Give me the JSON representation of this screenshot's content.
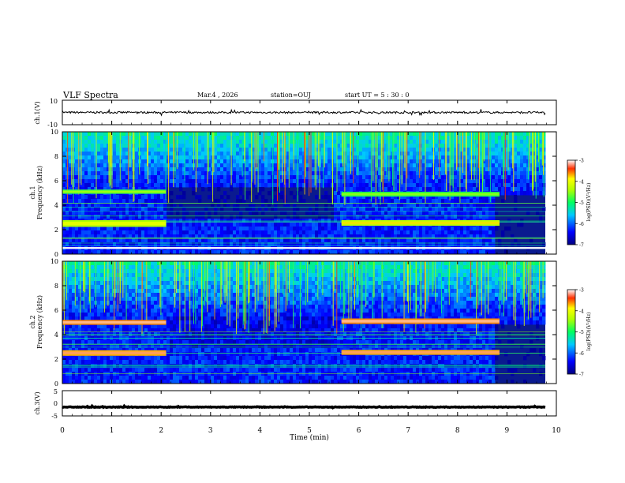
{
  "header": {
    "title": "VLF Spectra",
    "date": "Mar.4 , 2026",
    "station": "station=OUJ",
    "start": "start UT =  5 : 30 : 0"
  },
  "colors": {
    "spec_low": "#0a1a8f",
    "spec_mid": "#2fb5c9",
    "spec_high": "#32d94a",
    "spec_peak": "#e01010"
  },
  "chart_data": [
    {
      "type": "line",
      "name": "ch1-waveform",
      "ylabel": "ch.1(V)",
      "ylim": [
        -10,
        10
      ],
      "yticks": [
        "10",
        "-10"
      ],
      "xlim": [
        0,
        10
      ],
      "baseline": 0,
      "noise_amplitude": 1.5
    },
    {
      "type": "heatmap",
      "name": "ch1-spectrogram",
      "ylabel": [
        "ch.1",
        "Frequency (kHz)"
      ],
      "ylim": [
        0,
        10
      ],
      "yticks": [
        "0",
        "2",
        "4",
        "6",
        "8",
        "10"
      ],
      "xlim": [
        0,
        10
      ],
      "colorbar": {
        "label": "log(PSD)(V²/Hz)",
        "range": [
          -7,
          -3
        ],
        "ticks": [
          "-3",
          "-4",
          "-5",
          "-6",
          "-7"
        ]
      },
      "bands": [
        {
          "t0": 0,
          "t1": 2.1,
          "f": 5.1,
          "w": 0.35,
          "level": -4.8
        },
        {
          "t0": 0,
          "t1": 2.1,
          "f": 2.5,
          "w": 0.55,
          "level": -4.4
        },
        {
          "t0": 5.65,
          "t1": 8.85,
          "f": 4.9,
          "w": 0.4,
          "level": -4.9
        },
        {
          "t0": 5.65,
          "t1": 8.85,
          "f": 2.55,
          "w": 0.45,
          "level": -4.3
        },
        {
          "t0": 0,
          "t1": 10,
          "f": 0.5,
          "w": 0.15,
          "level": -3.0
        }
      ]
    },
    {
      "type": "heatmap",
      "name": "ch2-spectrogram",
      "ylabel": [
        "ch.2",
        "Frequency (kHz)"
      ],
      "ylim": [
        0,
        10
      ],
      "yticks": [
        "0",
        "2",
        "4",
        "6",
        "8",
        "10"
      ],
      "xlim": [
        0,
        10
      ],
      "colorbar": {
        "label": "log(PSD)(V²/Hz)",
        "range": [
          -7,
          -3
        ],
        "ticks": [
          "-3",
          "-4",
          "-5",
          "-6",
          "-7"
        ]
      },
      "bands": [
        {
          "t0": 0,
          "t1": 2.1,
          "f": 5.0,
          "w": 0.4,
          "level": -3.6
        },
        {
          "t0": 0,
          "t1": 2.1,
          "f": 2.5,
          "w": 0.45,
          "level": -3.7
        },
        {
          "t0": 5.65,
          "t1": 8.85,
          "f": 5.1,
          "w": 0.45,
          "level": -3.6
        },
        {
          "t0": 5.65,
          "t1": 8.85,
          "f": 2.55,
          "w": 0.4,
          "level": -3.7
        }
      ]
    },
    {
      "type": "line",
      "name": "ch3-waveform",
      "ylabel": "ch.3(V)",
      "ylim": [
        -5,
        5
      ],
      "yticks": [
        "5",
        "0",
        "-5"
      ],
      "xlim": [
        0,
        10
      ],
      "baseline": -1.5,
      "noise_amplitude": 0.25
    }
  ],
  "xaxis": {
    "label": "Time (min)",
    "ticks": [
      "0",
      "1",
      "2",
      "3",
      "4",
      "5",
      "6",
      "7",
      "8",
      "9",
      "10"
    ]
  }
}
